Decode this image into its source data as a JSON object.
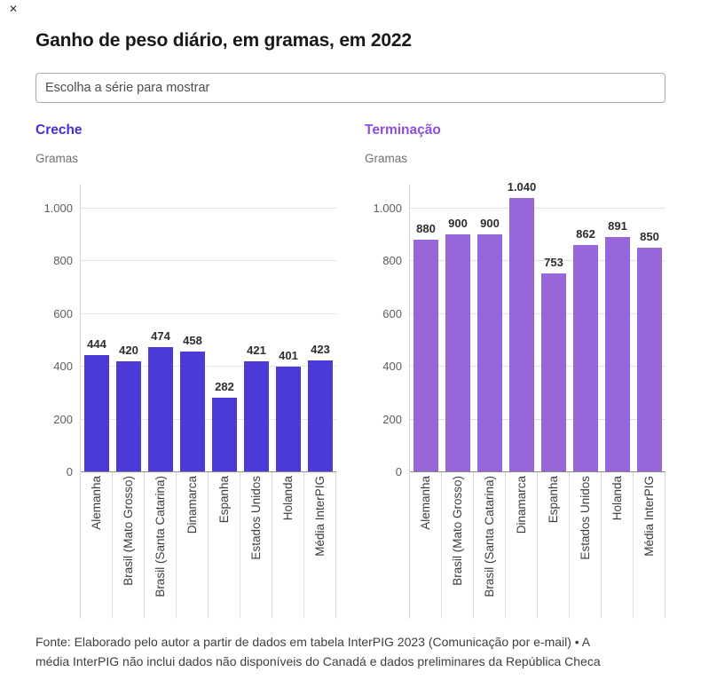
{
  "window": {
    "close_glyph": "✕"
  },
  "header": {
    "title": "Ganho de peso diário, em gramas, em 2022"
  },
  "series_picker": {
    "placeholder": "Escolha a série para mostrar"
  },
  "chart_data": [
    {
      "type": "bar",
      "title": "Creche",
      "title_color": "#4130d6",
      "bar_color": "#4b3ad6",
      "unit_label": "Gramas",
      "categories": [
        "Alemanha",
        "Brasil (Mato Grosso)",
        "Brasil (Santa Catarina)",
        "Dinamarca",
        "Espanha",
        "Estados Unidos",
        "Holanda",
        "Média InterPIG"
      ],
      "values": [
        444,
        420,
        474,
        458,
        282,
        421,
        401,
        423
      ],
      "display_values": [
        "444",
        "420",
        "474",
        "458",
        "282",
        "421",
        "401",
        "423"
      ],
      "y_ticks": [
        0,
        200,
        400,
        600,
        800,
        1000
      ],
      "y_tick_labels": [
        "0",
        "200",
        "400",
        "600",
        "800",
        "1.000"
      ],
      "ylim": [
        0,
        1090
      ],
      "grid": "horizontal",
      "legend": "none"
    },
    {
      "type": "bar",
      "title": "Terminação",
      "title_color": "#8e4fe0",
      "bar_color": "#9766db",
      "unit_label": "Gramas",
      "categories": [
        "Alemanha",
        "Brasil (Mato Grosso)",
        "Brasil (Santa Catarina)",
        "Dinamarca",
        "Espanha",
        "Estados Unidos",
        "Holanda",
        "Média InterPIG"
      ],
      "values": [
        880,
        900,
        900,
        1040,
        753,
        862,
        891,
        850
      ],
      "display_values": [
        "880",
        "900",
        "900",
        "1.040",
        "753",
        "862",
        "891",
        "850"
      ],
      "y_ticks": [
        0,
        200,
        400,
        600,
        800,
        1000
      ],
      "y_tick_labels": [
        "0",
        "200",
        "400",
        "600",
        "800",
        "1.000"
      ],
      "ylim": [
        0,
        1090
      ],
      "grid": "horizontal",
      "legend": "none"
    }
  ],
  "footer": {
    "lines": [
      "Fonte: Elaborado pelo autor a partir de dados em tabela InterPIG 2023 (Comunicação por e-mail) • A",
      "média InterPIG não inclui dados não disponíveis do Canadá e dados preliminares da República Checa"
    ]
  }
}
